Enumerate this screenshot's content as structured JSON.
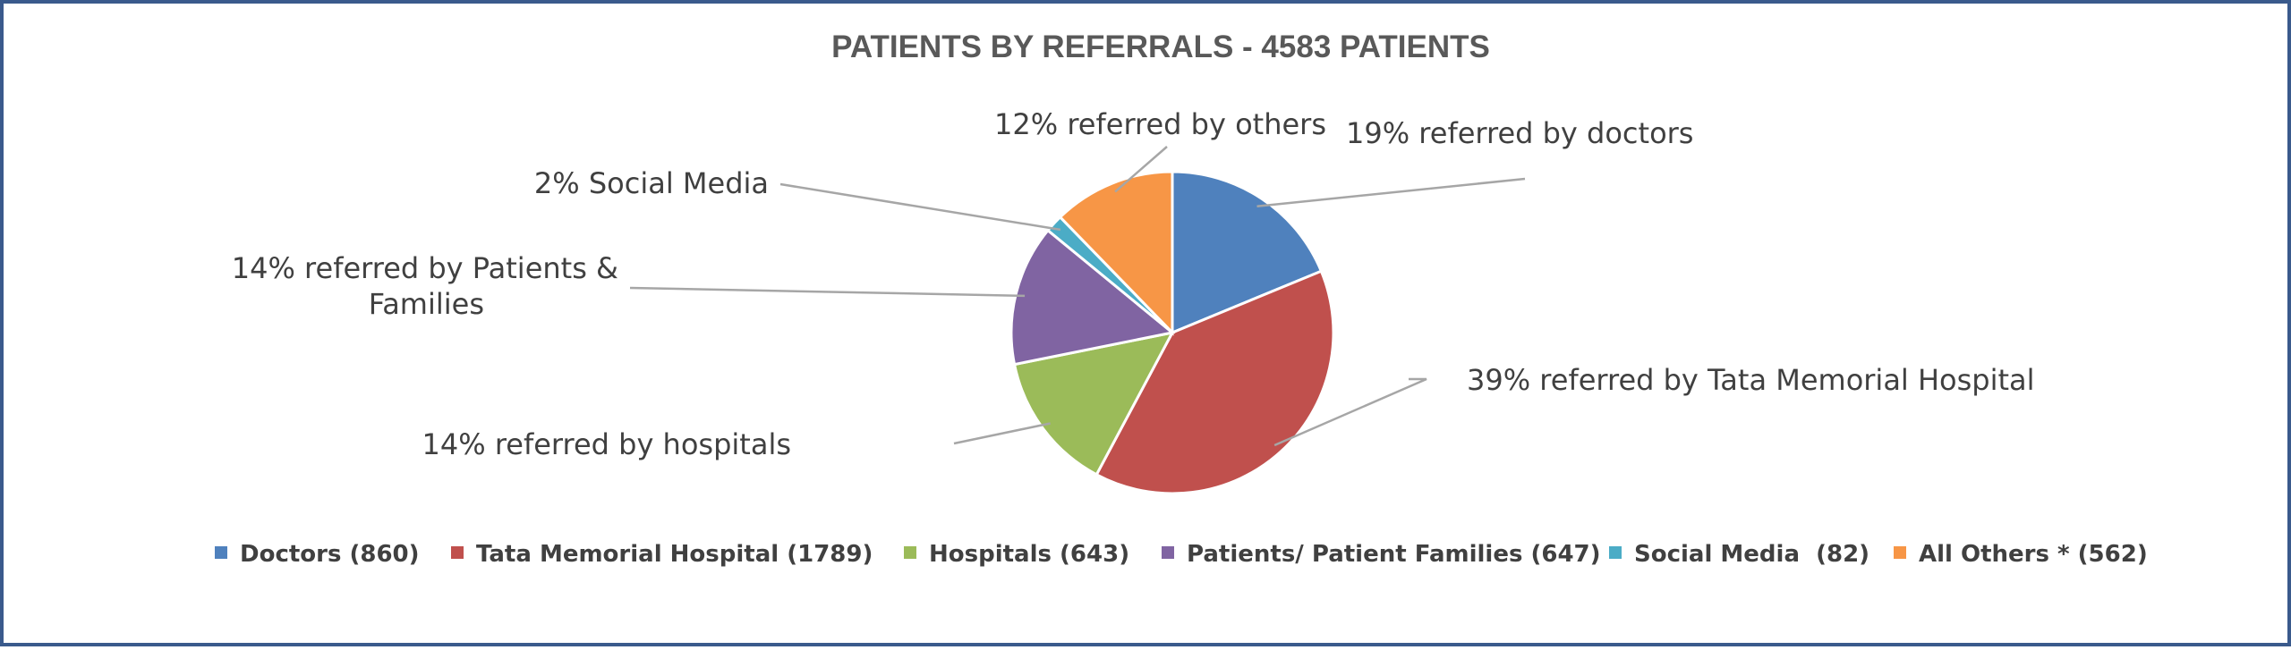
{
  "chart_data": {
    "type": "pie",
    "title": "PATIENTS BY REFERRALS - 4583 PATIENTS",
    "series": [
      {
        "name": "",
        "slices": [
          {
            "label": "Doctors (860)",
            "value": 860,
            "color": "#4f81bd",
            "data_label": [
              "19% referred by doctors"
            ]
          },
          {
            "label": "Tata Memorial Hospital (1789)",
            "value": 1789,
            "color": "#c0504d",
            "data_label": [
              "39% referred by Tata Memorial Hospital"
            ]
          },
          {
            "label": "Hospitals (643)",
            "value": 643,
            "color": "#9bbb59",
            "data_label": [
              "14% referred by hospitals"
            ]
          },
          {
            "label": "Patients/ Patient Families (647)",
            "value": 647,
            "color": "#8064a2",
            "data_label": [
              "14% referred by Patients &",
              "Families"
            ]
          },
          {
            "label": "Social Media  (82)",
            "value": 82,
            "color": "#4bacc6",
            "data_label": [
              "2% Social Media"
            ]
          },
          {
            "label": "All Others * (562)",
            "value": 562,
            "color": "#f79646",
            "data_label": [
              "12% referred by others"
            ]
          }
        ]
      }
    ],
    "legend_position": "bottom"
  }
}
